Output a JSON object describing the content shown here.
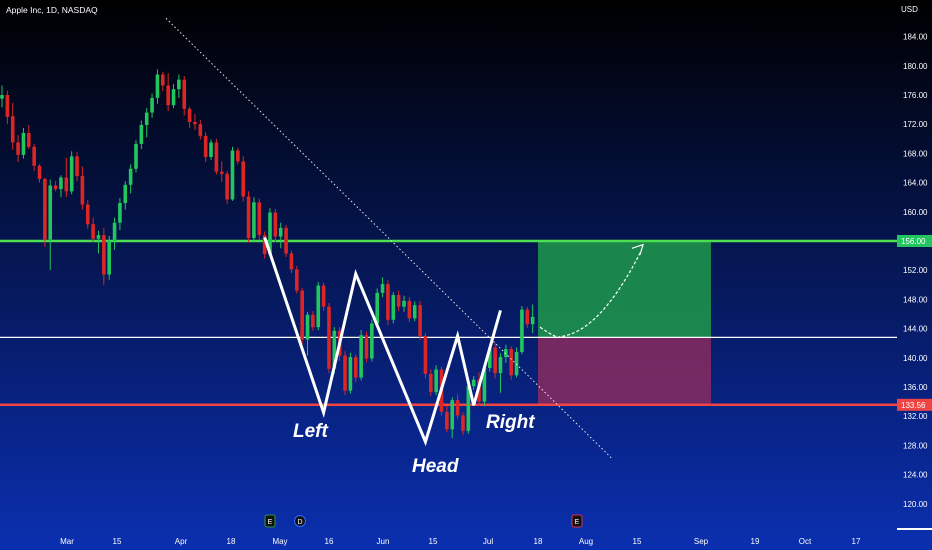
{
  "header": {
    "symbol_line": "Apple Inc, 1D, NASDAQ",
    "currency": "USD"
  },
  "colors": {
    "bg_top": "#000000",
    "bg_bottom": "#0b2fb0",
    "up": "#22c55e",
    "down": "#dc2626",
    "resistance": "#4ade50",
    "support": "#ef4444",
    "profit_zone": "#1f9a4a",
    "loss_zone": "#9b2d5c",
    "label_resistance_bg": "#22c55e",
    "label_support_bg": "#ef4444"
  },
  "chart_data": {
    "type": "candlestick",
    "title": "",
    "y_ticks": [
      184,
      180,
      176,
      172,
      168,
      164,
      160,
      156,
      152,
      148,
      144,
      140,
      136,
      132,
      128,
      124,
      120
    ],
    "ylim": [
      117,
      188
    ],
    "x_ticks": [
      "Mar",
      "15",
      "Apr",
      "18",
      "May",
      "16",
      "Jun",
      "15",
      "Jul",
      "18",
      "Aug",
      "15",
      "Sep",
      "19",
      "Oct",
      "17"
    ],
    "levels": [
      {
        "name": "resistance",
        "price": 156.0,
        "label": "156.00"
      },
      {
        "name": "neckline",
        "price": 142.8
      },
      {
        "name": "support",
        "price": 133.56,
        "label": "133.56"
      }
    ],
    "annotations": [
      "Left",
      "Head",
      "Right"
    ],
    "event_markers": [
      "E",
      "D",
      "E"
    ],
    "pattern_points": [
      {
        "day": 49,
        "price": 156.5
      },
      {
        "day": 60,
        "price": 132.5
      },
      {
        "day": 66,
        "price": 151.5
      },
      {
        "day": 79,
        "price": 128.5
      },
      {
        "day": 85,
        "price": 143.0
      },
      {
        "day": 88,
        "price": 133.5
      },
      {
        "day": 93,
        "price": 146.5
      }
    ],
    "candles": [
      [
        175.5,
        177.3,
        174.3,
        176.0
      ],
      [
        176.0,
        176.6,
        172.0,
        173.0
      ],
      [
        173.1,
        174.9,
        168.5,
        169.5
      ],
      [
        169.5,
        170.5,
        166.8,
        167.8
      ],
      [
        167.8,
        171.5,
        167.3,
        170.8
      ],
      [
        170.8,
        171.9,
        168.6,
        168.9
      ],
      [
        168.9,
        169.3,
        165.6,
        166.3
      ],
      [
        166.3,
        166.5,
        164.0,
        164.5
      ],
      [
        164.5,
        164.7,
        155.2,
        156.2
      ],
      [
        156.2,
        164.4,
        152.0,
        163.6
      ],
      [
        163.6,
        164.2,
        162.8,
        163.1
      ],
      [
        163.1,
        165.0,
        162.0,
        164.7
      ],
      [
        164.7,
        167.4,
        162.0,
        162.8
      ],
      [
        162.8,
        168.3,
        162.4,
        167.6
      ],
      [
        167.6,
        168.2,
        164.2,
        164.9
      ],
      [
        164.9,
        166.2,
        160.3,
        161.0
      ],
      [
        161.0,
        161.6,
        157.7,
        158.3
      ],
      [
        158.3,
        159.2,
        155.9,
        156.3
      ],
      [
        156.3,
        157.4,
        154.3,
        156.8
      ],
      [
        156.8,
        157.8,
        150.0,
        151.4
      ],
      [
        151.4,
        156.7,
        150.7,
        156.0
      ],
      [
        156.0,
        159.2,
        154.8,
        158.5
      ],
      [
        158.5,
        161.9,
        157.5,
        161.2
      ],
      [
        161.2,
        164.2,
        160.3,
        163.7
      ],
      [
        163.7,
        166.5,
        162.5,
        165.9
      ],
      [
        165.9,
        169.8,
        165.4,
        169.3
      ],
      [
        169.3,
        172.5,
        168.6,
        171.9
      ],
      [
        171.9,
        174.2,
        170.2,
        173.6
      ],
      [
        173.6,
        176.2,
        172.9,
        175.6
      ],
      [
        175.6,
        179.5,
        174.8,
        178.8
      ],
      [
        178.8,
        179.2,
        176.5,
        177.3
      ],
      [
        177.3,
        179.0,
        173.8,
        174.6
      ],
      [
        174.6,
        177.5,
        174.2,
        176.8
      ],
      [
        176.8,
        178.8,
        175.6,
        178.1
      ],
      [
        178.1,
        178.6,
        173.2,
        174.1
      ],
      [
        174.1,
        174.4,
        171.5,
        172.3
      ],
      [
        172.3,
        173.4,
        171.2,
        172.0
      ],
      [
        172.0,
        172.6,
        169.9,
        170.4
      ],
      [
        170.4,
        170.9,
        166.8,
        167.5
      ],
      [
        167.5,
        169.9,
        167.1,
        169.5
      ],
      [
        169.5,
        170.0,
        165.1,
        165.5
      ],
      [
        165.5,
        166.9,
        164.1,
        165.2
      ],
      [
        165.2,
        165.6,
        161.1,
        161.7
      ],
      [
        161.7,
        168.9,
        161.5,
        168.4
      ],
      [
        168.4,
        168.8,
        166.5,
        166.9
      ],
      [
        166.9,
        167.6,
        161.4,
        162.1
      ],
      [
        162.1,
        162.8,
        155.8,
        156.4
      ],
      [
        156.4,
        162.0,
        155.9,
        161.3
      ],
      [
        161.3,
        161.8,
        156.1,
        156.8
      ],
      [
        156.8,
        157.3,
        153.6,
        154.2
      ],
      [
        154.2,
        160.5,
        154.0,
        159.9
      ],
      [
        159.9,
        160.4,
        155.8,
        156.6
      ],
      [
        156.6,
        158.5,
        155.0,
        157.8
      ],
      [
        157.8,
        158.2,
        153.8,
        154.3
      ],
      [
        154.3,
        154.7,
        151.6,
        152.1
      ],
      [
        152.1,
        152.6,
        148.8,
        149.2
      ],
      [
        149.2,
        149.6,
        141.9,
        142.5
      ],
      [
        142.5,
        146.3,
        140.3,
        145.9
      ],
      [
        145.9,
        146.4,
        143.7,
        144.2
      ],
      [
        144.2,
        150.4,
        143.8,
        149.9
      ],
      [
        149.9,
        150.3,
        146.4,
        147.0
      ],
      [
        147.0,
        147.5,
        137.9,
        138.5
      ],
      [
        138.5,
        144.2,
        137.8,
        143.7
      ],
      [
        143.7,
        144.2,
        139.6,
        140.3
      ],
      [
        140.3,
        140.9,
        134.9,
        135.5
      ],
      [
        135.5,
        140.7,
        135.1,
        140.1
      ],
      [
        140.1,
        140.5,
        136.7,
        137.3
      ],
      [
        137.3,
        143.8,
        136.9,
        143.1
      ],
      [
        143.1,
        143.6,
        139.4,
        139.9
      ],
      [
        139.9,
        145.2,
        139.5,
        144.7
      ],
      [
        144.7,
        149.5,
        144.2,
        148.9
      ],
      [
        148.9,
        151.0,
        148.3,
        150.1
      ],
      [
        150.1,
        150.6,
        144.5,
        145.2
      ],
      [
        145.2,
        149.0,
        144.7,
        148.6
      ],
      [
        148.6,
        149.2,
        146.4,
        147.0
      ],
      [
        147.0,
        148.5,
        146.3,
        147.8
      ],
      [
        147.8,
        148.3,
        144.9,
        145.4
      ],
      [
        145.4,
        147.7,
        145.0,
        147.2
      ],
      [
        147.2,
        147.8,
        142.4,
        143.0
      ],
      [
        143.0,
        143.4,
        137.2,
        137.8
      ],
      [
        137.8,
        138.4,
        134.8,
        135.3
      ],
      [
        135.3,
        139.0,
        134.9,
        138.4
      ],
      [
        138.4,
        138.8,
        132.1,
        132.6
      ],
      [
        132.6,
        133.4,
        129.8,
        130.2
      ],
      [
        130.2,
        134.6,
        129.0,
        134.2
      ],
      [
        134.2,
        135.0,
        131.6,
        132.1
      ],
      [
        132.1,
        132.5,
        129.4,
        130.0
      ],
      [
        130.0,
        136.6,
        129.6,
        136.1
      ],
      [
        136.1,
        137.5,
        135.6,
        137.0
      ],
      [
        137.0,
        138.0,
        133.4,
        134.0
      ],
      [
        134.0,
        139.0,
        133.4,
        138.6
      ],
      [
        138.6,
        141.9,
        138.1,
        141.4
      ],
      [
        141.4,
        142.0,
        137.2,
        137.9
      ],
      [
        137.9,
        140.6,
        135.2,
        140.1
      ],
      [
        140.1,
        141.8,
        139.3,
        141.2
      ],
      [
        141.2,
        141.6,
        137.0,
        137.6
      ],
      [
        137.6,
        141.4,
        137.3,
        140.8
      ],
      [
        140.8,
        147.1,
        140.5,
        146.6
      ],
      [
        146.6,
        147.0,
        144.1,
        144.6
      ],
      [
        144.6,
        147.3,
        143.4,
        145.6
      ]
    ],
    "legend": "",
    "grid": false
  }
}
